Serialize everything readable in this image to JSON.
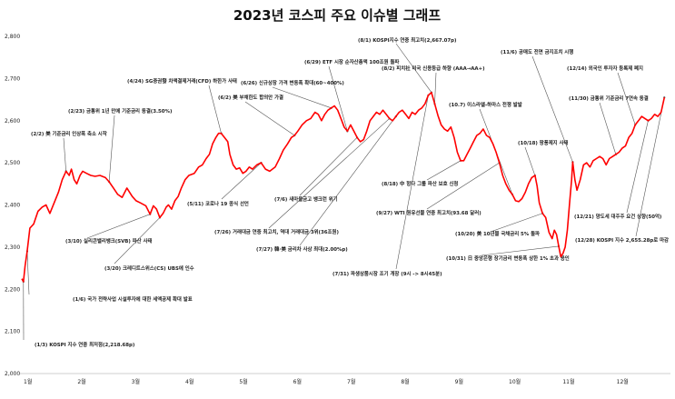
{
  "chart_data": {
    "type": "line",
    "title": "2023년  코스피 주요 이슈별 그래프",
    "ylim": [
      2000,
      2800
    ],
    "yticks": [
      2000,
      2100,
      2200,
      2300,
      2400,
      2500,
      2600,
      2700,
      2800
    ],
    "ytick_labels": [
      "2,000",
      "2,100",
      "2,200",
      "2,300",
      "2,400",
      "2,500",
      "2,600",
      "2,700",
      "2,800"
    ],
    "xtick_labels": [
      "1월",
      "2월",
      "3월",
      "4월",
      "5월",
      "6월",
      "7월",
      "8월",
      "9월",
      "10월",
      "11월",
      "12월"
    ],
    "x_range": [
      0,
      12
    ],
    "grid": false,
    "line_color": "#ff0000",
    "series": [
      {
        "points": [
          [
            0.0,
            2225
          ],
          [
            0.03,
            2218
          ],
          [
            0.06,
            2255
          ],
          [
            0.1,
            2290
          ],
          [
            0.15,
            2345
          ],
          [
            0.22,
            2355
          ],
          [
            0.3,
            2385
          ],
          [
            0.38,
            2395
          ],
          [
            0.45,
            2400
          ],
          [
            0.52,
            2380
          ],
          [
            0.6,
            2405
          ],
          [
            0.68,
            2430
          ],
          [
            0.75,
            2460
          ],
          [
            0.82,
            2480
          ],
          [
            0.88,
            2470
          ],
          [
            0.92,
            2485
          ],
          [
            0.97,
            2460
          ],
          [
            1.02,
            2450
          ],
          [
            1.08,
            2470
          ],
          [
            1.13,
            2480
          ],
          [
            1.2,
            2475
          ],
          [
            1.28,
            2470
          ],
          [
            1.36,
            2468
          ],
          [
            1.45,
            2470
          ],
          [
            1.55,
            2465
          ],
          [
            1.62,
            2455
          ],
          [
            1.7,
            2440
          ],
          [
            1.78,
            2425
          ],
          [
            1.86,
            2418
          ],
          [
            1.95,
            2440
          ],
          [
            2.05,
            2420
          ],
          [
            2.12,
            2410
          ],
          [
            2.2,
            2405
          ],
          [
            2.3,
            2398
          ],
          [
            2.38,
            2378
          ],
          [
            2.44,
            2398
          ],
          [
            2.5,
            2390
          ],
          [
            2.56,
            2370
          ],
          [
            2.62,
            2380
          ],
          [
            2.68,
            2395
          ],
          [
            2.72,
            2400
          ],
          [
            2.78,
            2390
          ],
          [
            2.84,
            2410
          ],
          [
            2.9,
            2420
          ],
          [
            2.96,
            2440
          ],
          [
            3.03,
            2460
          ],
          [
            3.1,
            2470
          ],
          [
            3.2,
            2475
          ],
          [
            3.28,
            2490
          ],
          [
            3.35,
            2495
          ],
          [
            3.42,
            2510
          ],
          [
            3.48,
            2520
          ],
          [
            3.54,
            2545
          ],
          [
            3.6,
            2560
          ],
          [
            3.65,
            2570
          ],
          [
            3.7,
            2570
          ],
          [
            3.76,
            2560
          ],
          [
            3.82,
            2550
          ],
          [
            3.86,
            2520
          ],
          [
            3.92,
            2495
          ],
          [
            3.98,
            2485
          ],
          [
            4.04,
            2488
          ],
          [
            4.1,
            2475
          ],
          [
            4.16,
            2480
          ],
          [
            4.22,
            2490
          ],
          [
            4.28,
            2485
          ],
          [
            4.36,
            2495
          ],
          [
            4.44,
            2500
          ],
          [
            4.52,
            2485
          ],
          [
            4.6,
            2480
          ],
          [
            4.7,
            2490
          ],
          [
            4.78,
            2510
          ],
          [
            4.85,
            2530
          ],
          [
            4.93,
            2545
          ],
          [
            5.0,
            2560
          ],
          [
            5.06,
            2565
          ],
          [
            5.12,
            2575
          ],
          [
            5.2,
            2590
          ],
          [
            5.28,
            2600
          ],
          [
            5.36,
            2605
          ],
          [
            5.44,
            2620
          ],
          [
            5.5,
            2615
          ],
          [
            5.56,
            2600
          ],
          [
            5.62,
            2615
          ],
          [
            5.68,
            2625
          ],
          [
            5.74,
            2630
          ],
          [
            5.8,
            2635
          ],
          [
            5.86,
            2625
          ],
          [
            5.92,
            2605
          ],
          [
            5.98,
            2585
          ],
          [
            6.04,
            2575
          ],
          [
            6.1,
            2590
          ],
          [
            6.16,
            2575
          ],
          [
            6.22,
            2560
          ],
          [
            6.28,
            2550
          ],
          [
            6.34,
            2555
          ],
          [
            6.4,
            2575
          ],
          [
            6.46,
            2600
          ],
          [
            6.52,
            2610
          ],
          [
            6.58,
            2620
          ],
          [
            6.64,
            2615
          ],
          [
            6.7,
            2625
          ],
          [
            6.76,
            2615
          ],
          [
            6.82,
            2605
          ],
          [
            6.88,
            2600
          ],
          [
            6.94,
            2610
          ],
          [
            7.0,
            2620
          ],
          [
            7.06,
            2625
          ],
          [
            7.12,
            2615
          ],
          [
            7.18,
            2605
          ],
          [
            7.24,
            2620
          ],
          [
            7.3,
            2615
          ],
          [
            7.36,
            2625
          ],
          [
            7.42,
            2630
          ],
          [
            7.48,
            2640
          ],
          [
            7.54,
            2660
          ],
          [
            7.6,
            2667
          ],
          [
            7.66,
            2640
          ],
          [
            7.72,
            2612
          ],
          [
            7.78,
            2590
          ],
          [
            7.84,
            2580
          ],
          [
            7.9,
            2575
          ],
          [
            7.96,
            2585
          ],
          [
            8.02,
            2560
          ],
          [
            8.08,
            2525
          ],
          [
            8.14,
            2505
          ],
          [
            8.2,
            2505
          ],
          [
            8.26,
            2520
          ],
          [
            8.32,
            2535
          ],
          [
            8.38,
            2550
          ],
          [
            8.44,
            2565
          ],
          [
            8.5,
            2570
          ],
          [
            8.56,
            2580
          ],
          [
            8.62,
            2565
          ],
          [
            8.68,
            2560
          ],
          [
            8.74,
            2545
          ],
          [
            8.8,
            2525
          ],
          [
            8.86,
            2500
          ],
          [
            8.92,
            2470
          ],
          [
            8.98,
            2450
          ],
          [
            9.04,
            2435
          ],
          [
            9.1,
            2425
          ],
          [
            9.16,
            2410
          ],
          [
            9.22,
            2408
          ],
          [
            9.28,
            2415
          ],
          [
            9.34,
            2430
          ],
          [
            9.4,
            2450
          ],
          [
            9.46,
            2465
          ],
          [
            9.52,
            2470
          ],
          [
            9.56,
            2445
          ],
          [
            9.6,
            2405
          ],
          [
            9.66,
            2380
          ],
          [
            9.72,
            2370
          ],
          [
            9.78,
            2335
          ],
          [
            9.84,
            2320
          ],
          [
            9.88,
            2340
          ],
          [
            9.92,
            2330
          ],
          [
            9.96,
            2302
          ],
          [
            10.0,
            2277
          ],
          [
            10.04,
            2285
          ],
          [
            10.08,
            2300
          ],
          [
            10.12,
            2340
          ],
          [
            10.16,
            2400
          ],
          [
            10.2,
            2460
          ],
          [
            10.22,
            2502
          ],
          [
            10.26,
            2460
          ],
          [
            10.3,
            2435
          ],
          [
            10.36,
            2460
          ],
          [
            10.42,
            2495
          ],
          [
            10.48,
            2500
          ],
          [
            10.54,
            2490
          ],
          [
            10.6,
            2505
          ],
          [
            10.66,
            2510
          ],
          [
            10.72,
            2515
          ],
          [
            10.78,
            2510
          ],
          [
            10.84,
            2495
          ],
          [
            10.9,
            2510
          ],
          [
            10.96,
            2515
          ],
          [
            11.02,
            2520
          ],
          [
            11.08,
            2525
          ],
          [
            11.14,
            2535
          ],
          [
            11.2,
            2540
          ],
          [
            11.26,
            2560
          ],
          [
            11.32,
            2570
          ],
          [
            11.38,
            2590
          ],
          [
            11.44,
            2600
          ],
          [
            11.5,
            2610
          ],
          [
            11.56,
            2605
          ],
          [
            11.62,
            2600
          ],
          [
            11.68,
            2605
          ],
          [
            11.74,
            2615
          ],
          [
            11.8,
            2610
          ],
          [
            11.86,
            2620
          ],
          [
            11.92,
            2655
          ]
        ]
      }
    ],
    "annotations": [
      {
        "text": "(1/3) KOSPI 지수 연중 최저점(2,218.68p)",
        "point": [
          0.03,
          2218
        ]
      },
      {
        "text": "(1/6) 국가 전략사업 시설투자에 대한 세액공제 확대 발표",
        "point": [
          0.1,
          2290
        ]
      },
      {
        "text": "(2/2) 美 기준금리 인상폭 축소 시작",
        "point": [
          0.82,
          2480
        ]
      },
      {
        "text": "(2/23) 금통위 1년 만에 기준금리 동결(3.50%)",
        "point": [
          1.62,
          2455
        ]
      },
      {
        "text": "(3/10) 실리콘밸리뱅크(SVB) 파산 사태",
        "point": [
          2.38,
          2378
        ]
      },
      {
        "text": "(3/20) 크레디트스위스(CS) UBS에 인수",
        "point": [
          2.56,
          2370
        ]
      },
      {
        "text": "(4/24) SG증권發 차액결제거래(CFD) 하한가 사태",
        "point": [
          3.7,
          2570
        ]
      },
      {
        "text": "(5/11) 코로나 19 종식 선언",
        "point": [
          4.44,
          2500
        ]
      },
      {
        "text": "(6/2) 美 부채한도 합의안 가결",
        "point": [
          5.06,
          2565
        ]
      },
      {
        "text": "(6/26) 신규상장 가격 변동폭 확대(60~400%)",
        "point": [
          5.74,
          2630
        ]
      },
      {
        "text": "(6/29) ETF 시장 순자산총액 100조원 돌파",
        "point": [
          6.04,
          2575
        ]
      },
      {
        "text": "(7/6) 새마을금고 뱅크런 위기",
        "point": [
          6.22,
          2560
        ]
      },
      {
        "text": "(7/26) 거래대금 연중 최고치, 역대 거래대금 3위(36조원)",
        "point": [
          6.82,
          2605
        ]
      },
      {
        "text": "(7/27) 韓·美 금리차 사상 최대(2.00%p)",
        "point": [
          6.94,
          2610
        ]
      },
      {
        "text": "(7/31) 파생상품시장 조기 개장 (9시 -> 8시45분)",
        "point": [
          7.54,
          2660
        ]
      },
      {
        "text": "(8/1) KOSPI지수 연중 최고치(2,667.07p)",
        "point": [
          7.6,
          2667
        ]
      },
      {
        "text": "(8/2) 피치社 미국 신용등급 하향 (AAA→AA+)",
        "point": [
          7.66,
          2640
        ]
      },
      {
        "text": "(8/18) 中 헝다 그룹 파산 보호 신청",
        "point": [
          8.14,
          2505
        ]
      },
      {
        "text": "(9/27) WTI 원유선물 연중 최고치(93.68 달러)",
        "point": [
          8.86,
          2500
        ]
      },
      {
        "text": "(10.7) 이스라엘-하마스 전쟁 발발",
        "point": [
          9.1,
          2425
        ]
      },
      {
        "text": "(10/18) 팡풍제지 사태",
        "point": [
          9.52,
          2470
        ]
      },
      {
        "text": "(10/20) 美 10년물 국채금리 5% 돌파",
        "point": [
          9.66,
          2380
        ]
      },
      {
        "text": "(10/31) 日 중앙은행 장기금리 변동폭 상한 1% 초과 용인",
        "point": [
          9.96,
          2302
        ]
      },
      {
        "text": "(11/6) 공매도 전면 금지조치 시행",
        "point": [
          10.22,
          2502
        ]
      },
      {
        "text": "(11/30) 금통위 기준금리 7연속 동결",
        "point": [
          11.02,
          2520
        ]
      },
      {
        "text": "(12/14) 외국인 투자자 등록제 폐지",
        "point": [
          11.38,
          2590
        ]
      },
      {
        "text": "(12/21) 양도세 대주주 요건 상향(50억)",
        "point": [
          11.62,
          2600
        ]
      },
      {
        "text": "(12/28) KOSPI 지수 2,655.28p로 마감",
        "point": [
          11.92,
          2655
        ]
      }
    ]
  }
}
